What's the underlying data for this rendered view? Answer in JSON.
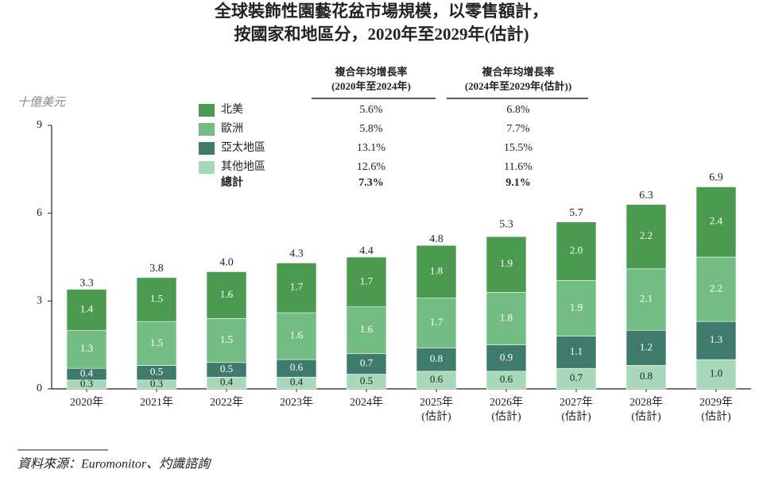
{
  "chart_data": {
    "type": "stacked-bar",
    "title": [
      "全球裝飾性園藝花盆市場規模，以零售額計，",
      "按國家和地區分，2020年至2029年(估計)"
    ],
    "y_unit": "十億美元",
    "categories": [
      "2020年",
      "2021年",
      "2022年",
      "2023年",
      "2024年",
      "2025年",
      "2026年",
      "2027年",
      "2028年",
      "2029年"
    ],
    "x_sublabels": [
      null,
      null,
      null,
      null,
      null,
      "(估計)",
      "(估計)",
      "(估計)",
      "(估計)",
      "(估計)"
    ],
    "ylim": [
      0,
      9
    ],
    "yticks": [
      0,
      3,
      6,
      9
    ],
    "series": [
      {
        "name": "其他地區",
        "color": "#a6d8b9",
        "values": [
          0.3,
          0.3,
          0.4,
          0.4,
          0.5,
          0.6,
          0.6,
          0.7,
          0.8,
          1.0
        ],
        "value_labels": [
          "0.3",
          "0.3",
          "0.4",
          "0.4",
          "0.5",
          "0.6",
          "0.6",
          "0.7",
          "0.8",
          "1.0"
        ],
        "cagr": [
          "12.6%",
          "11.6%"
        ]
      },
      {
        "name": "亞太地區",
        "color": "#3f7b6d",
        "values": [
          0.4,
          0.5,
          0.5,
          0.6,
          0.7,
          0.8,
          0.9,
          1.1,
          1.2,
          1.3
        ],
        "value_labels": [
          "0.4",
          "0.5",
          "0.5",
          "0.6",
          "0.7",
          "0.8",
          "0.9",
          "1.1",
          "1.2",
          "1.3"
        ],
        "cagr": [
          "13.1%",
          "15.5%"
        ]
      },
      {
        "name": "歐洲",
        "color": "#73bd85",
        "values": [
          1.3,
          1.5,
          1.5,
          1.6,
          1.6,
          1.7,
          1.8,
          1.9,
          2.1,
          2.2
        ],
        "value_labels": [
          "1.3",
          "1.5",
          "1.5",
          "1.6",
          "1.6",
          "1.7",
          "1.8",
          "1.9",
          "2.1",
          "2.2"
        ],
        "cagr": [
          "5.8%",
          "7.7%"
        ]
      },
      {
        "name": "北美",
        "color": "#4b9a50",
        "values": [
          1.4,
          1.5,
          1.6,
          1.7,
          1.7,
          1.8,
          1.9,
          2.0,
          2.2,
          2.4
        ],
        "value_labels": [
          "1.4",
          "1.5",
          "1.6",
          "1.7",
          "1.7",
          "1.8",
          "1.9",
          "2.0",
          "2.2",
          "2.4"
        ],
        "cagr": [
          "5.6%",
          "6.8%"
        ]
      }
    ],
    "totals": [
      3.3,
      3.8,
      4.0,
      4.3,
      4.4,
      4.8,
      5.3,
      5.7,
      6.3,
      6.9
    ],
    "totals_value_labels": [
      "3.3",
      "3.8",
      "4.0",
      "4.3",
      "4.4",
      "4.8",
      "5.3",
      "5.7",
      "6.3",
      "6.9"
    ],
    "cagr_headers": [
      [
        "複合年均增長率",
        "(2020年至2024年)"
      ],
      [
        "複合年均增長率",
        "(2024年至2029年(估計))"
      ]
    ],
    "total_name": "總計",
    "total_cagr": [
      "7.3%",
      "9.1%"
    ],
    "source": "資料來源：Euromonitor、灼識諮詢"
  }
}
